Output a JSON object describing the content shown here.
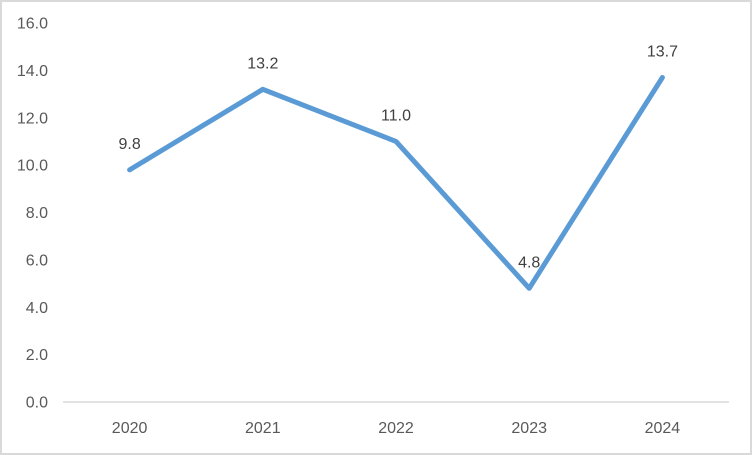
{
  "chart_data": {
    "type": "line",
    "categories": [
      "2020",
      "2021",
      "2022",
      "2023",
      "2024"
    ],
    "values": [
      9.8,
      13.2,
      11.0,
      4.8,
      13.7
    ],
    "data_labels": [
      "9.8",
      "13.2",
      "11.0",
      "4.8",
      "13.7"
    ],
    "y_ticks": [
      {
        "value": 0,
        "label": "0.0"
      },
      {
        "value": 2,
        "label": "2.0"
      },
      {
        "value": 4,
        "label": "4.0"
      },
      {
        "value": 6,
        "label": "6.0"
      },
      {
        "value": 8,
        "label": "8.0"
      },
      {
        "value": 10,
        "label": "10.0"
      },
      {
        "value": 12,
        "label": "12.0"
      },
      {
        "value": 14,
        "label": "14.0"
      },
      {
        "value": 16,
        "label": "16.0"
      }
    ],
    "ylim": [
      0,
      16
    ],
    "title": "",
    "xlabel": "",
    "ylabel": "",
    "grid": false,
    "legend": "none",
    "colors": {
      "line": "#5b9bd5",
      "axis": "#d9d9d9",
      "tick_text": "#595959",
      "data_label_text": "#404040",
      "background": "#ffffff",
      "border": "#d9d9d9"
    }
  }
}
